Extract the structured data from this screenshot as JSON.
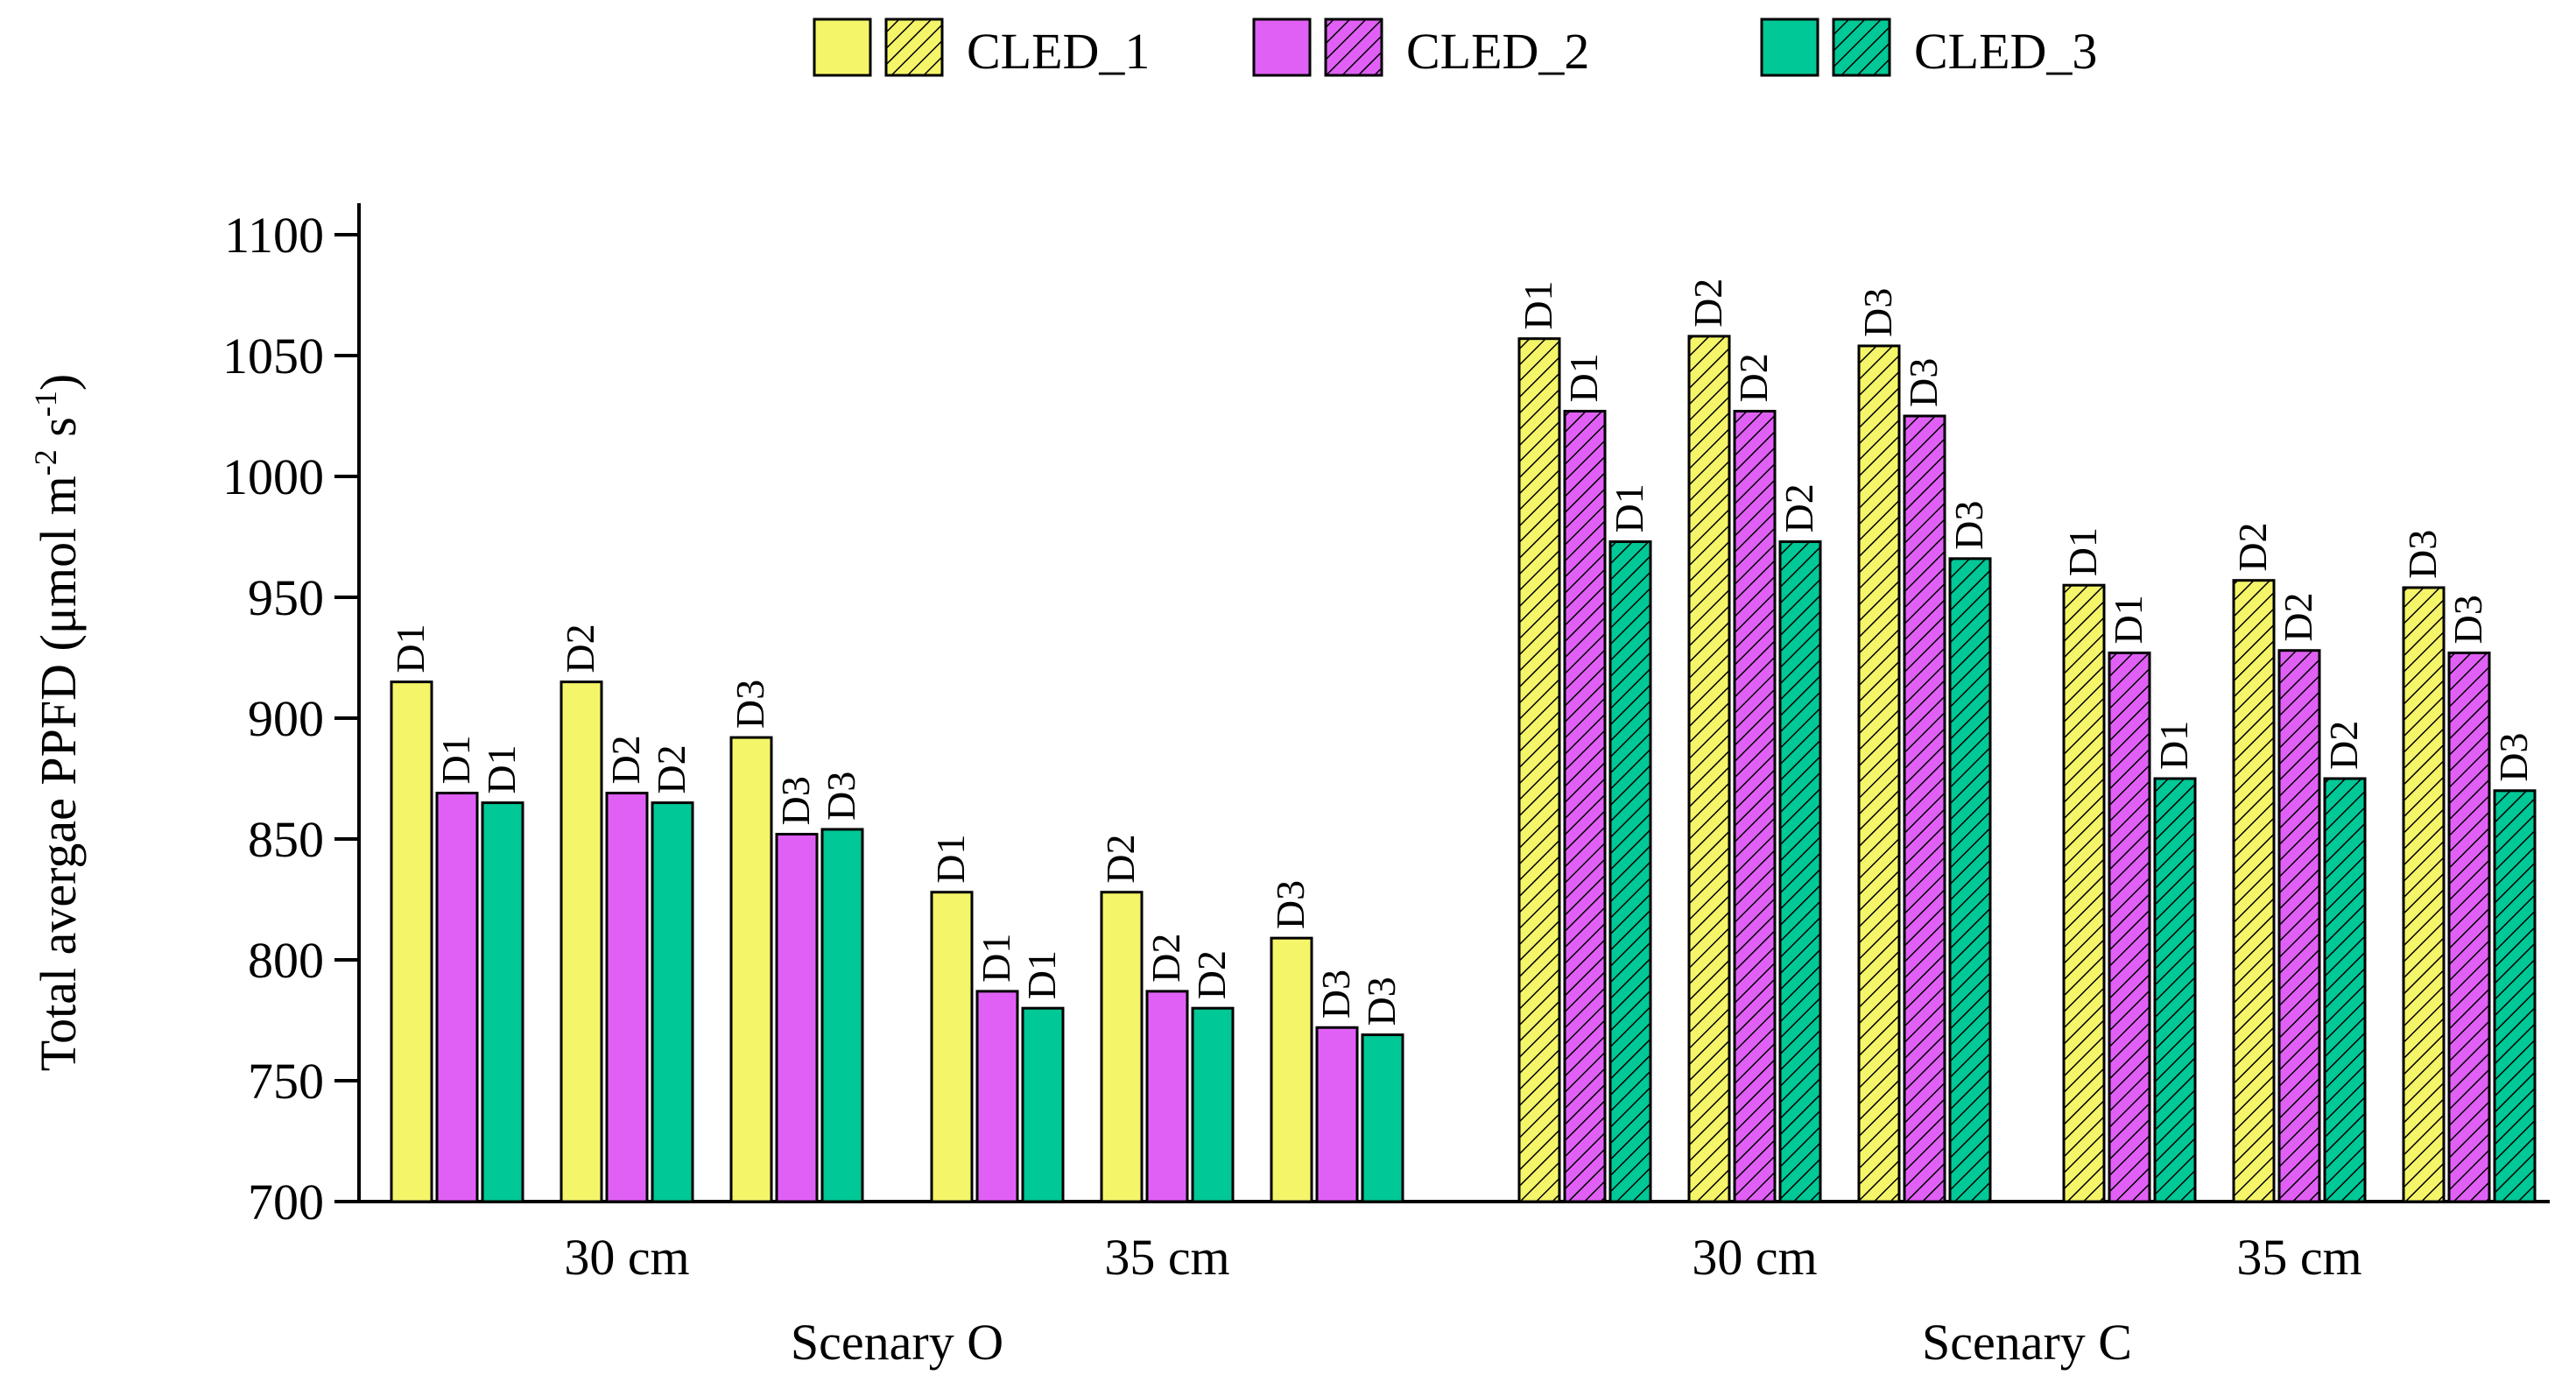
{
  "chart_data": {
    "type": "bar",
    "ylabel_main": "Total avergae PPFD (μmol m",
    "ylabel_sup1": "-2",
    "ylabel_mid": " s",
    "ylabel_sup2": "-1",
    "ylabel_end": ")",
    "ylim": [
      700,
      1100
    ],
    "yticks": [
      700,
      750,
      800,
      850,
      900,
      950,
      1000,
      1050,
      1100
    ],
    "legend": {
      "position": "top-center",
      "entries": [
        {
          "name": "CLED_1",
          "color": "#F5F56A"
        },
        {
          "name": "CLED_2",
          "color": "#E060F5"
        },
        {
          "name": "CLED_3",
          "color": "#00C896"
        }
      ]
    },
    "scenarios": [
      {
        "name": "Scenary O",
        "hatched": false,
        "distances": [
          {
            "label": "30 cm",
            "groups": [
              {
                "values": [
                  915,
                  869,
                  865
                ],
                "labels": [
                  "D1",
                  "D1",
                  "D1"
                ]
              },
              {
                "values": [
                  915,
                  869,
                  865
                ],
                "labels": [
                  "D2",
                  "D2",
                  "D2"
                ]
              },
              {
                "values": [
                  892,
                  852,
                  854
                ],
                "labels": [
                  "D3",
                  "D3",
                  "D3"
                ]
              }
            ]
          },
          {
            "label": "35 cm",
            "groups": [
              {
                "values": [
                  828,
                  787,
                  780
                ],
                "labels": [
                  "D1",
                  "D1",
                  "D1"
                ]
              },
              {
                "values": [
                  828,
                  787,
                  780
                ],
                "labels": [
                  "D2",
                  "D2",
                  "D2"
                ]
              },
              {
                "values": [
                  809,
                  772,
                  769
                ],
                "labels": [
                  "D3",
                  "D3",
                  "D3"
                ]
              }
            ]
          }
        ]
      },
      {
        "name": "Scenary C",
        "hatched": true,
        "distances": [
          {
            "label": "30 cm",
            "groups": [
              {
                "values": [
                  1057,
                  1027,
                  973
                ],
                "labels": [
                  "D1",
                  "D1",
                  "D1"
                ]
              },
              {
                "values": [
                  1058,
                  1027,
                  973
                ],
                "labels": [
                  "D2",
                  "D2",
                  "D2"
                ]
              },
              {
                "values": [
                  1054,
                  1025,
                  966
                ],
                "labels": [
                  "D3",
                  "D3",
                  "D3"
                ]
              }
            ]
          },
          {
            "label": "35 cm",
            "groups": [
              {
                "values": [
                  955,
                  927,
                  875
                ],
                "labels": [
                  "D1",
                  "D1",
                  "D1"
                ]
              },
              {
                "values": [
                  957,
                  928,
                  875
                ],
                "labels": [
                  "D2",
                  "D2",
                  "D2"
                ]
              },
              {
                "values": [
                  954,
                  927,
                  870
                ],
                "labels": [
                  "D3",
                  "D3",
                  "D3"
                ]
              }
            ]
          }
        ]
      }
    ]
  }
}
